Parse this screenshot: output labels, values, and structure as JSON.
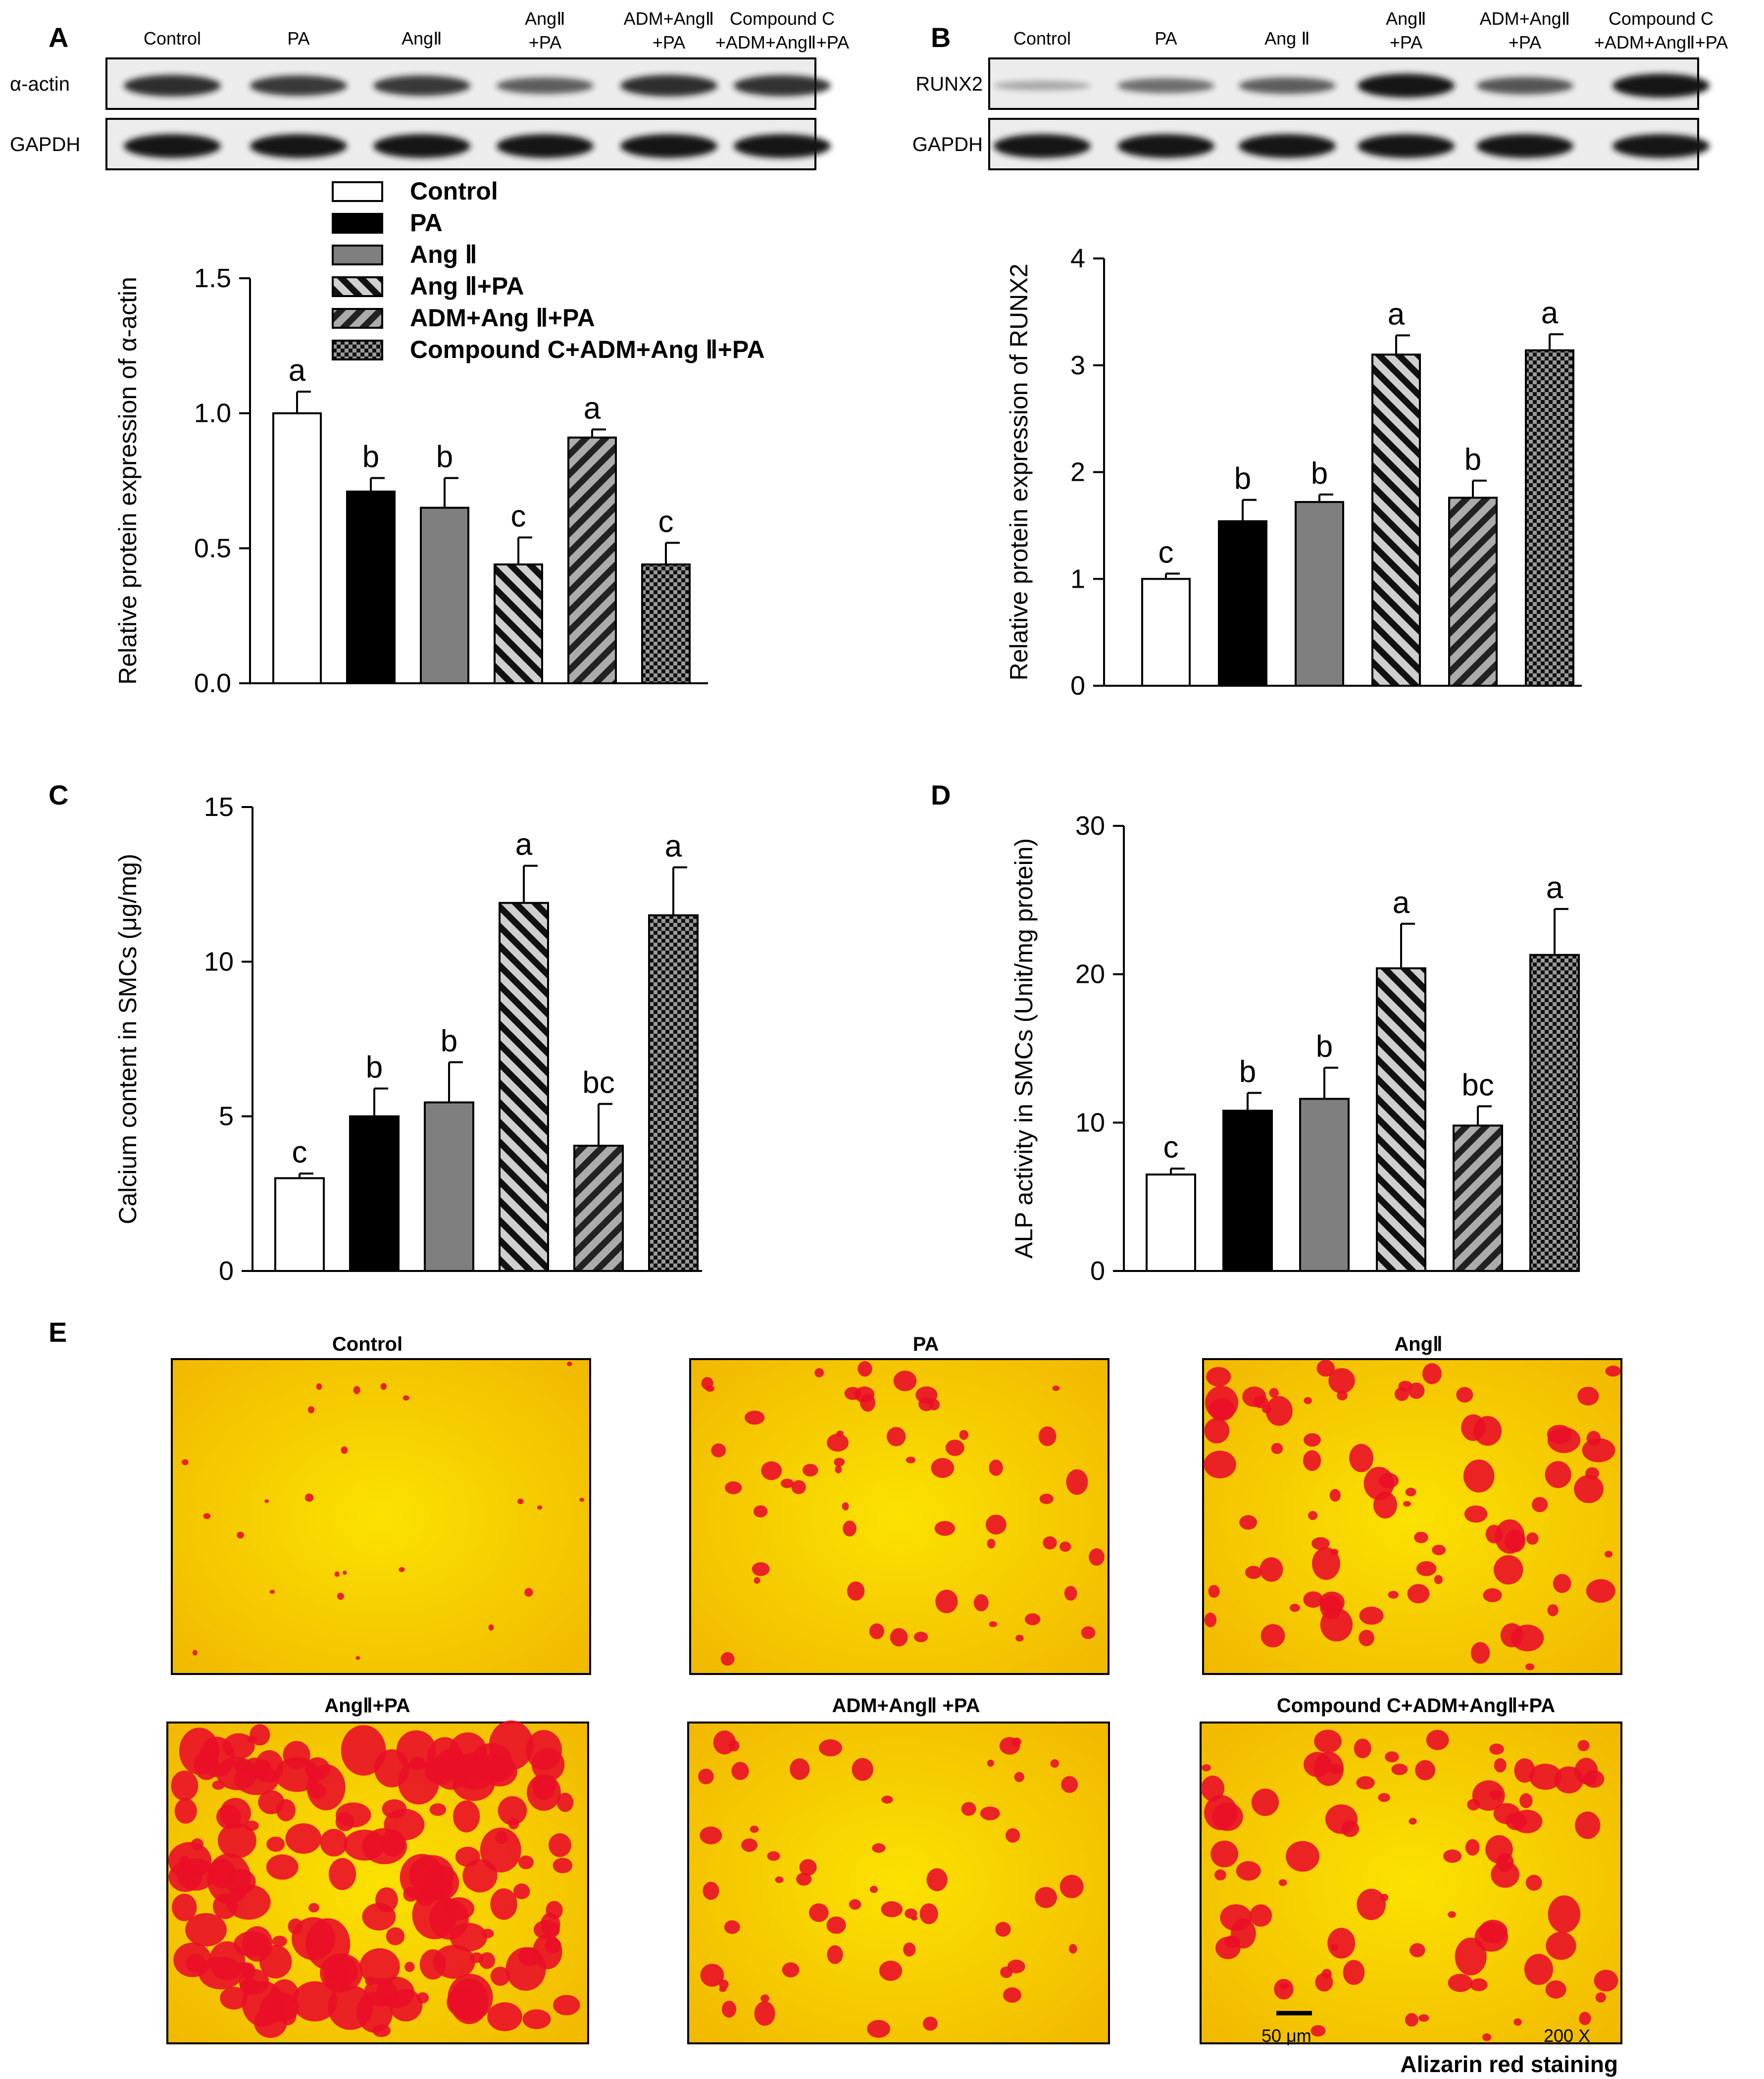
{
  "panel_labels": {
    "a": "A",
    "b": "B",
    "c": "C",
    "d": "D",
    "e": "E"
  },
  "legend": [
    {
      "label": "Control",
      "fill": "white"
    },
    {
      "label": "PA",
      "fill": "black"
    },
    {
      "label": "Ang Ⅱ",
      "fill": "gray"
    },
    {
      "label": "Ang Ⅱ+PA",
      "fill": "diag-light"
    },
    {
      "label": "ADM+Ang Ⅱ+PA",
      "fill": "diag-dark"
    },
    {
      "label": "Compound C+ADM+Ang Ⅱ+PA",
      "fill": "checker"
    }
  ],
  "colors": {
    "bar_black": "#000000",
    "bar_gray": "#7f7f7f",
    "stripe_light": "#cfcfcf",
    "stripe_dark": "#ababab",
    "blot_band": "#161616",
    "stain_bg": "#f7d800",
    "stain_spot": "#ea1027"
  },
  "blot_a": {
    "lanes": [
      [
        "Control"
      ],
      [
        "PA"
      ],
      [
        "AngⅡ"
      ],
      [
        "AngⅡ",
        "+PA"
      ],
      [
        "ADM+AngⅡ",
        "+PA"
      ],
      [
        "Compound C",
        "+ADM+AngⅡ+PA"
      ]
    ],
    "rows": [
      "α-actin",
      "GAPDH"
    ]
  },
  "blot_b": {
    "lanes": [
      [
        "Control"
      ],
      [
        "PA"
      ],
      [
        "Ang Ⅱ"
      ],
      [
        "AngⅡ",
        "+PA"
      ],
      [
        "ADM+AngⅡ",
        "+PA"
      ],
      [
        "Compound C",
        "+ADM+AngⅡ+PA"
      ]
    ],
    "rows": [
      "RUNX2",
      "GAPDH"
    ]
  },
  "chart_data": [
    {
      "id": "A",
      "type": "bar",
      "categories": [
        "Control",
        "PA",
        "Ang Ⅱ",
        "Ang Ⅱ+PA",
        "ADM+Ang Ⅱ+PA",
        "Compound C+ADM+Ang Ⅱ+PA"
      ],
      "values": [
        1.0,
        0.71,
        0.65,
        0.44,
        0.91,
        0.44
      ],
      "errors": [
        0.08,
        0.05,
        0.11,
        0.1,
        0.03,
        0.08
      ],
      "letters": [
        "a",
        "b",
        "b",
        "c",
        "a",
        "c"
      ],
      "ylabel": "Relative protein expression of α-actin",
      "ylim": [
        0,
        1.5
      ],
      "yticks": [
        0,
        0.5,
        1.0,
        1.5
      ],
      "yticklabels": [
        "0.0",
        "0.5",
        "1.0",
        "1.5"
      ]
    },
    {
      "id": "B",
      "type": "bar",
      "categories": [
        "Control",
        "PA",
        "Ang Ⅱ",
        "Ang Ⅱ+PA",
        "ADM+Ang Ⅱ+PA",
        "Compound C+ADM+Ang Ⅱ+PA"
      ],
      "values": [
        1.0,
        1.54,
        1.72,
        3.1,
        1.76,
        3.14
      ],
      "errors": [
        0.05,
        0.2,
        0.07,
        0.18,
        0.16,
        0.15
      ],
      "letters": [
        "c",
        "b",
        "b",
        "a",
        "b",
        "a"
      ],
      "ylabel": "Relative protein expression of RUNX2",
      "ylim": [
        0,
        4
      ],
      "yticks": [
        0,
        1,
        2,
        3,
        4
      ],
      "yticklabels": [
        "0",
        "1",
        "2",
        "3",
        "4"
      ]
    },
    {
      "id": "C",
      "type": "bar",
      "categories": [
        "Control",
        "PA",
        "Ang Ⅱ",
        "Ang Ⅱ+PA",
        "ADM+Ang Ⅱ+PA",
        "Compound C+ADM+Ang Ⅱ+PA"
      ],
      "values": [
        3.0,
        5.0,
        5.45,
        11.9,
        4.05,
        11.5
      ],
      "errors": [
        0.15,
        0.9,
        1.3,
        1.2,
        1.35,
        1.55
      ],
      "letters": [
        "c",
        "b",
        "b",
        "a",
        "bc",
        "a"
      ],
      "ylabel": "Calcium content in SMCs (μg/mg)",
      "ylim": [
        0,
        15
      ],
      "yticks": [
        0,
        5,
        10,
        15
      ],
      "yticklabels": [
        "0",
        "5",
        "10",
        "15"
      ]
    },
    {
      "id": "D",
      "type": "bar",
      "categories": [
        "Control",
        "PA",
        "Ang Ⅱ",
        "Ang Ⅱ+PA",
        "ADM+Ang Ⅱ+PA",
        "Compound C+ADM+Ang Ⅱ+PA"
      ],
      "values": [
        6.5,
        10.8,
        11.6,
        20.4,
        9.8,
        21.3
      ],
      "errors": [
        0.4,
        1.2,
        2.1,
        3.0,
        1.3,
        3.1
      ],
      "letters": [
        "c",
        "b",
        "b",
        "a",
        "bc",
        "a"
      ],
      "ylabel": "ALP activity in SMCs (Unit/mg protein)",
      "ylim": [
        0,
        30
      ],
      "yticks": [
        0,
        10,
        20,
        30
      ],
      "yticklabels": [
        "0",
        "10",
        "20",
        "30"
      ]
    }
  ],
  "staining": {
    "panels": [
      {
        "title": "Control",
        "density": 0
      },
      {
        "title": "PA",
        "density": 1
      },
      {
        "title": "AngⅡ",
        "density": 2
      },
      {
        "title": "AngⅡ+PA",
        "density": 3
      },
      {
        "title": "ADM+AngⅡ +PA",
        "density": 1
      },
      {
        "title": "Compound C+ADM+AngⅡ+PA",
        "density": 2
      }
    ],
    "scale_bar": "50 μm",
    "magnification": "200 X",
    "caption": "Alizarin red  staining"
  }
}
